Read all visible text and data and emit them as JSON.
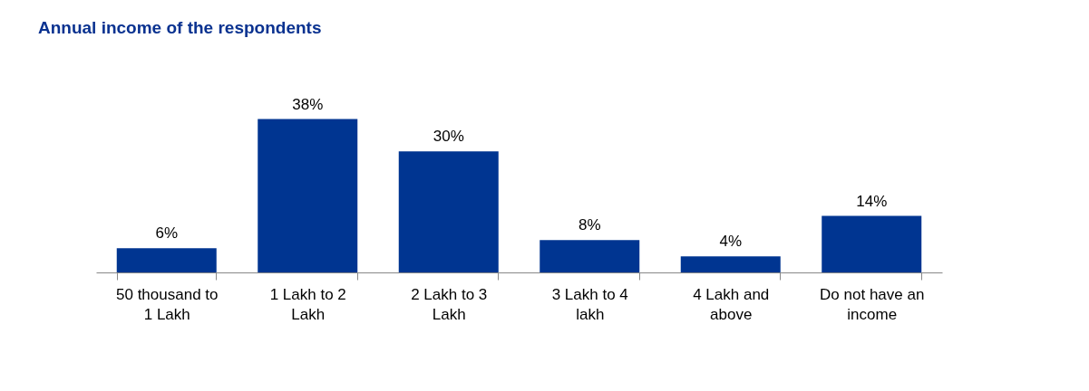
{
  "chart_data": {
    "type": "bar",
    "title": "Annual income of the respondents",
    "categories": [
      "50 thousand to 1 Lakh",
      "1 Lakh to 2 Lakh",
      "2 Lakh to 3 Lakh",
      "3 Lakh to 4 lakh",
      "4 Lakh and above",
      "Do not have an income"
    ],
    "values": [
      6,
      38,
      30,
      8,
      4,
      14
    ],
    "value_labels": [
      "6%",
      "38%",
      "30%",
      "8%",
      "4%",
      "14%"
    ],
    "color": "#003591"
  }
}
